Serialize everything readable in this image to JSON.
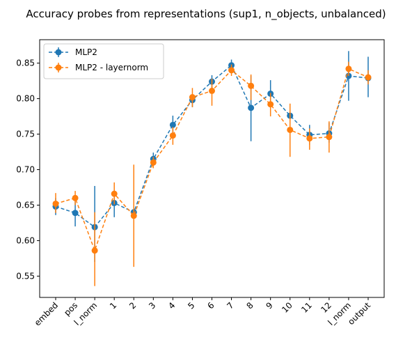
{
  "chart_data": {
    "type": "line",
    "title": "Accuracy probes from representations (sup1, n_objects, unbalanced)",
    "xlabel": "",
    "ylabel": "",
    "categories": [
      "embed",
      "pos",
      "l_norm",
      "1",
      "2",
      "3",
      "4",
      "5",
      "6",
      "7",
      "8",
      "9",
      "10",
      "11",
      "12",
      "l_norm",
      "output"
    ],
    "ylim": [
      0.52,
      0.883
    ],
    "yticks": [
      "0.55",
      "0.60",
      "0.65",
      "0.70",
      "0.75",
      "0.80",
      "0.85"
    ],
    "legend_position": "upper-left",
    "grid": false,
    "series": [
      {
        "name": "MLP2",
        "color": "#1f77b4",
        "values": [
          0.648,
          0.639,
          0.619,
          0.653,
          0.64,
          0.715,
          0.763,
          0.798,
          0.824,
          0.847,
          0.787,
          0.807,
          0.776,
          0.749,
          0.751,
          0.832,
          0.829
        ],
        "err_low": [
          0.636,
          0.62,
          0.57,
          0.633,
          0.628,
          0.708,
          0.749,
          0.788,
          0.814,
          0.839,
          0.74,
          0.79,
          0.758,
          0.735,
          0.738,
          0.797,
          0.802
        ],
        "err_high": [
          0.66,
          0.655,
          0.677,
          0.668,
          0.65,
          0.724,
          0.776,
          0.806,
          0.833,
          0.855,
          0.832,
          0.826,
          0.79,
          0.763,
          0.766,
          0.867,
          0.859
        ]
      },
      {
        "name": "MLP2 - layernorm",
        "color": "#ff7f0e",
        "values": [
          0.652,
          0.66,
          0.586,
          0.666,
          0.635,
          0.71,
          0.748,
          0.802,
          0.811,
          0.84,
          0.818,
          0.792,
          0.756,
          0.744,
          0.746,
          0.842,
          0.83
        ],
        "err_low": [
          0.639,
          0.65,
          0.536,
          0.651,
          0.563,
          0.702,
          0.735,
          0.788,
          0.79,
          0.832,
          0.798,
          0.775,
          0.718,
          0.728,
          0.724,
          0.832,
          0.82
        ],
        "err_high": [
          0.667,
          0.67,
          0.64,
          0.682,
          0.707,
          0.718,
          0.76,
          0.815,
          0.828,
          0.848,
          0.834,
          0.808,
          0.793,
          0.758,
          0.768,
          0.852,
          0.84
        ]
      }
    ]
  }
}
